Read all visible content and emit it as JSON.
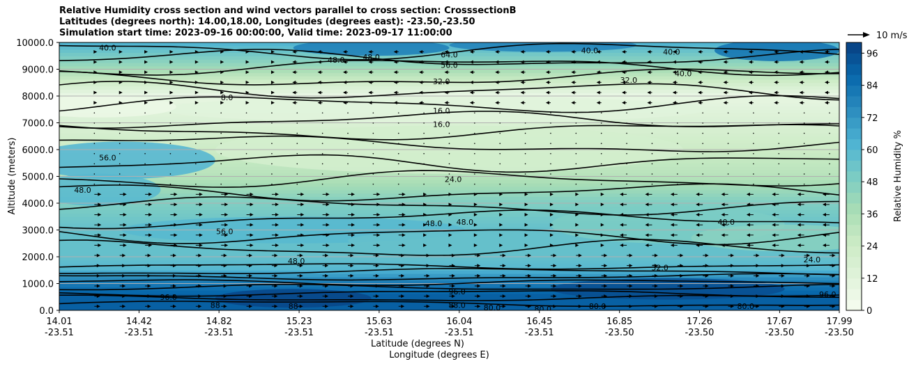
{
  "title_lines": [
    "Relative Humidity cross section and wind vectors parallel to cross section: CrosssectionB",
    "Latitudes (degrees north): 14.00,18.00, Longitudes (degrees east): -23.50,-23.50",
    "Simulation start time: 2023-09-16 00:00:00, Valid time: 2023-09-17 11:00:00"
  ],
  "wind_key_label": "10 m/s",
  "chart_data": {
    "type": "contour",
    "title": "Relative Humidity cross section and wind vectors parallel to cross section: CrosssectionB",
    "ylabel": "Altitude (meters)",
    "xlabel_1": "Latitude (degrees N)",
    "xlabel_2": "Longitude (degrees E)",
    "ylim": [
      0,
      10000
    ],
    "y_ticks": [
      {
        "value": 0,
        "label": "0.0"
      },
      {
        "value": 1000,
        "label": "1000.0"
      },
      {
        "value": 2000,
        "label": "2000.0"
      },
      {
        "value": 3000,
        "label": "3000.0"
      },
      {
        "value": 4000,
        "label": "4000.0"
      },
      {
        "value": 5000,
        "label": "5000.0"
      },
      {
        "value": 6000,
        "label": "6000.0"
      },
      {
        "value": 7000,
        "label": "7000.0"
      },
      {
        "value": 8000,
        "label": "8000.0"
      },
      {
        "value": 9000,
        "label": "9000.0"
      },
      {
        "value": 10000,
        "label": "10000.0"
      }
    ],
    "x_ticks": [
      {
        "lat": "14.01",
        "lon": "-23.51",
        "frac": 0.0
      },
      {
        "lat": "14.42",
        "lon": "-23.51",
        "frac": 0.1023
      },
      {
        "lat": "14.82",
        "lon": "-23.51",
        "frac": 0.2048
      },
      {
        "lat": "15.23",
        "lon": "-23.51",
        "frac": 0.3075
      },
      {
        "lat": "15.63",
        "lon": "-23.51",
        "frac": 0.4101
      },
      {
        "lat": "16.04",
        "lon": "-23.51",
        "frac": 0.5128
      },
      {
        "lat": "16.45",
        "lon": "-23.51",
        "frac": 0.6155
      },
      {
        "lat": "16.85",
        "lon": "-23.50",
        "frac": 0.7182
      },
      {
        "lat": "17.26",
        "lon": "-23.50",
        "frac": 0.8208
      },
      {
        "lat": "17.67",
        "lon": "-23.50",
        "frac": 0.9235
      },
      {
        "lat": "17.99",
        "lon": "-23.50",
        "frac": 1.0
      }
    ],
    "colorbar": {
      "label": "Relative Humidity %",
      "range": [
        0,
        100
      ],
      "ticks": [
        "0",
        "12",
        "24",
        "36",
        "48",
        "60",
        "72",
        "84",
        "96"
      ],
      "tick_values": [
        0,
        12,
        24,
        36,
        48,
        60,
        72,
        84,
        96
      ]
    },
    "rh_profile": [
      {
        "alt": 0,
        "rh": 90
      },
      {
        "alt": 500,
        "rh": 90
      },
      {
        "alt": 1000,
        "rh": 80
      },
      {
        "alt": 1500,
        "rh": 60
      },
      {
        "alt": 2000,
        "rh": 56
      },
      {
        "alt": 3000,
        "rh": 56
      },
      {
        "alt": 4000,
        "rh": 48
      },
      {
        "alt": 5000,
        "rh": 32
      },
      {
        "alt": 6000,
        "rh": 24
      },
      {
        "alt": 7000,
        "rh": 16
      },
      {
        "alt": 8000,
        "rh": 8
      },
      {
        "alt": 9000,
        "rh": 40
      },
      {
        "alt": 10000,
        "rh": 64
      }
    ],
    "contour_labels": [
      {
        "text": "40.0",
        "x": 0.062,
        "alt": 9800
      },
      {
        "text": "48.0",
        "x": 0.355,
        "alt": 9350
      },
      {
        "text": "48.0",
        "x": 0.4,
        "alt": 9450
      },
      {
        "text": "64.0",
        "x": 0.5,
        "alt": 9550
      },
      {
        "text": "56.0",
        "x": 0.5,
        "alt": 9150
      },
      {
        "text": "40.0",
        "x": 0.68,
        "alt": 9700
      },
      {
        "text": "40.0",
        "x": 0.785,
        "alt": 9650
      },
      {
        "text": "40.0",
        "x": 0.8,
        "alt": 8850
      },
      {
        "text": "32.0",
        "x": 0.49,
        "alt": 8550
      },
      {
        "text": "32.0",
        "x": 0.73,
        "alt": 8600
      },
      {
        "text": "8.0",
        "x": 0.215,
        "alt": 7950
      },
      {
        "text": "16.0",
        "x": 0.49,
        "alt": 7450
      },
      {
        "text": "16.0",
        "x": 0.49,
        "alt": 6950
      },
      {
        "text": "56.0",
        "x": 0.062,
        "alt": 5700
      },
      {
        "text": "24.0",
        "x": 0.505,
        "alt": 4900
      },
      {
        "text": "48.0",
        "x": 0.03,
        "alt": 4500
      },
      {
        "text": "48.0",
        "x": 0.48,
        "alt": 3250
      },
      {
        "text": "48.0",
        "x": 0.52,
        "alt": 3300
      },
      {
        "text": "40.0",
        "x": 0.855,
        "alt": 3300
      },
      {
        "text": "56.0",
        "x": 0.212,
        "alt": 2950
      },
      {
        "text": "48.0",
        "x": 0.304,
        "alt": 1850
      },
      {
        "text": "24.0",
        "x": 0.965,
        "alt": 1900
      },
      {
        "text": "32.0",
        "x": 0.77,
        "alt": 1600
      },
      {
        "text": "96.0",
        "x": 0.14,
        "alt": 500
      },
      {
        "text": "88",
        "x": 0.2,
        "alt": 200
      },
      {
        "text": "88",
        "x": 0.3,
        "alt": 150
      },
      {
        "text": "88.0",
        "x": 0.51,
        "alt": 200
      },
      {
        "text": "96.0",
        "x": 0.51,
        "alt": 700
      },
      {
        "text": "80.0",
        "x": 0.555,
        "alt": 100
      },
      {
        "text": "80.0",
        "x": 0.62,
        "alt": 50
      },
      {
        "text": "80.0",
        "x": 0.69,
        "alt": 150
      },
      {
        "text": "80.0",
        "x": 0.88,
        "alt": 150
      },
      {
        "text": "96.0",
        "x": 0.985,
        "alt": 600
      }
    ]
  }
}
